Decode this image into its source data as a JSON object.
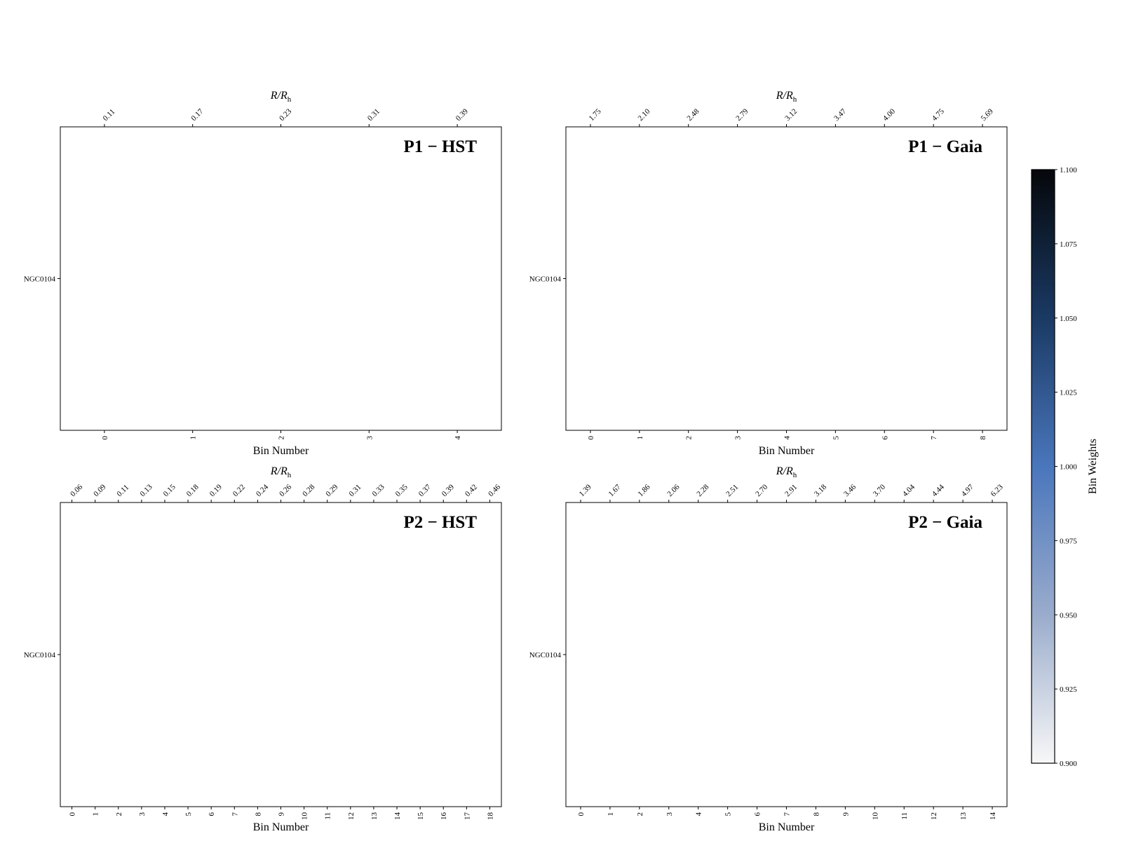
{
  "chart_data": [
    {
      "type": "heatmap",
      "title": "P1 − HST",
      "xlabel": "Bin Number",
      "x2label": [
        "R/R",
        "h"
      ],
      "categories": [
        0,
        1,
        2,
        3,
        4
      ],
      "top_categories": [
        "0.11",
        "0.17",
        "0.23",
        "0.31",
        "0.39"
      ],
      "y_categories": [
        "NGC0104"
      ],
      "values": [
        [
          null,
          null,
          null,
          null,
          null
        ]
      ]
    },
    {
      "type": "heatmap",
      "title": "P1 − Gaia",
      "xlabel": "Bin Number",
      "x2label": [
        "R/R",
        "h"
      ],
      "categories": [
        0,
        1,
        2,
        3,
        4,
        5,
        6,
        7,
        8
      ],
      "top_categories": [
        "1.75",
        "2.10",
        "2.48",
        "2.79",
        "3.12",
        "3.47",
        "4.00",
        "4.75",
        "5.69"
      ],
      "y_categories": [
        "NGC0104"
      ],
      "values": [
        [
          null,
          null,
          null,
          null,
          null,
          null,
          null,
          null,
          null
        ]
      ]
    },
    {
      "type": "heatmap",
      "title": "P2 − HST",
      "xlabel": "Bin Number",
      "x2label": [
        "R/R",
        "h"
      ],
      "categories": [
        0,
        1,
        2,
        3,
        4,
        5,
        6,
        7,
        8,
        9,
        10,
        11,
        12,
        13,
        14,
        15,
        16,
        17,
        18
      ],
      "top_categories": [
        "0.06",
        "0.09",
        "0.11",
        "0.13",
        "0.15",
        "0.18",
        "0.19",
        "0.22",
        "0.24",
        "0.26",
        "0.28",
        "0.29",
        "0.31",
        "0.33",
        "0.35",
        "0.37",
        "0.39",
        "0.42",
        "0.46"
      ],
      "y_categories": [
        "NGC0104"
      ],
      "values": [
        [
          null,
          null,
          null,
          null,
          null,
          null,
          null,
          null,
          null,
          null,
          null,
          null,
          null,
          null,
          null,
          null,
          null,
          null,
          null
        ]
      ]
    },
    {
      "type": "heatmap",
      "title": "P2 − Gaia",
      "xlabel": "Bin Number",
      "x2label": [
        "R/R",
        "h"
      ],
      "categories": [
        0,
        1,
        2,
        3,
        4,
        5,
        6,
        7,
        8,
        9,
        10,
        11,
        12,
        13,
        14
      ],
      "top_categories": [
        "1.39",
        "1.67",
        "1.86",
        "2.06",
        "2.28",
        "2.51",
        "2.70",
        "2.91",
        "3.18",
        "3.46",
        "3.70",
        "4.04",
        "4.44",
        "4.97",
        "6.23"
      ],
      "y_categories": [
        "NGC0104"
      ],
      "values": [
        [
          null,
          null,
          null,
          null,
          null,
          null,
          null,
          null,
          null,
          null,
          null,
          null,
          null,
          null,
          null
        ]
      ]
    },
    {
      "type": "colorbar",
      "label": "Bin Weights",
      "colors": [
        "#f7f7f7",
        "#9aaccc",
        "#4a76bc",
        "#1a3a64",
        "#05070b"
      ],
      "ylim": [
        0.9,
        1.1
      ],
      "yticks": [
        {
          "value": 0.9,
          "label": "0.900"
        },
        {
          "value": 0.925,
          "label": "0.925"
        },
        {
          "value": 0.95,
          "label": "0.950"
        },
        {
          "value": 0.975,
          "label": "0.975"
        },
        {
          "value": 1.0,
          "label": "1.000"
        },
        {
          "value": 1.025,
          "label": "1.025"
        },
        {
          "value": 1.05,
          "label": "1.050"
        },
        {
          "value": 1.075,
          "label": "1.075"
        },
        {
          "value": 1.1,
          "label": "1.100"
        }
      ]
    }
  ]
}
